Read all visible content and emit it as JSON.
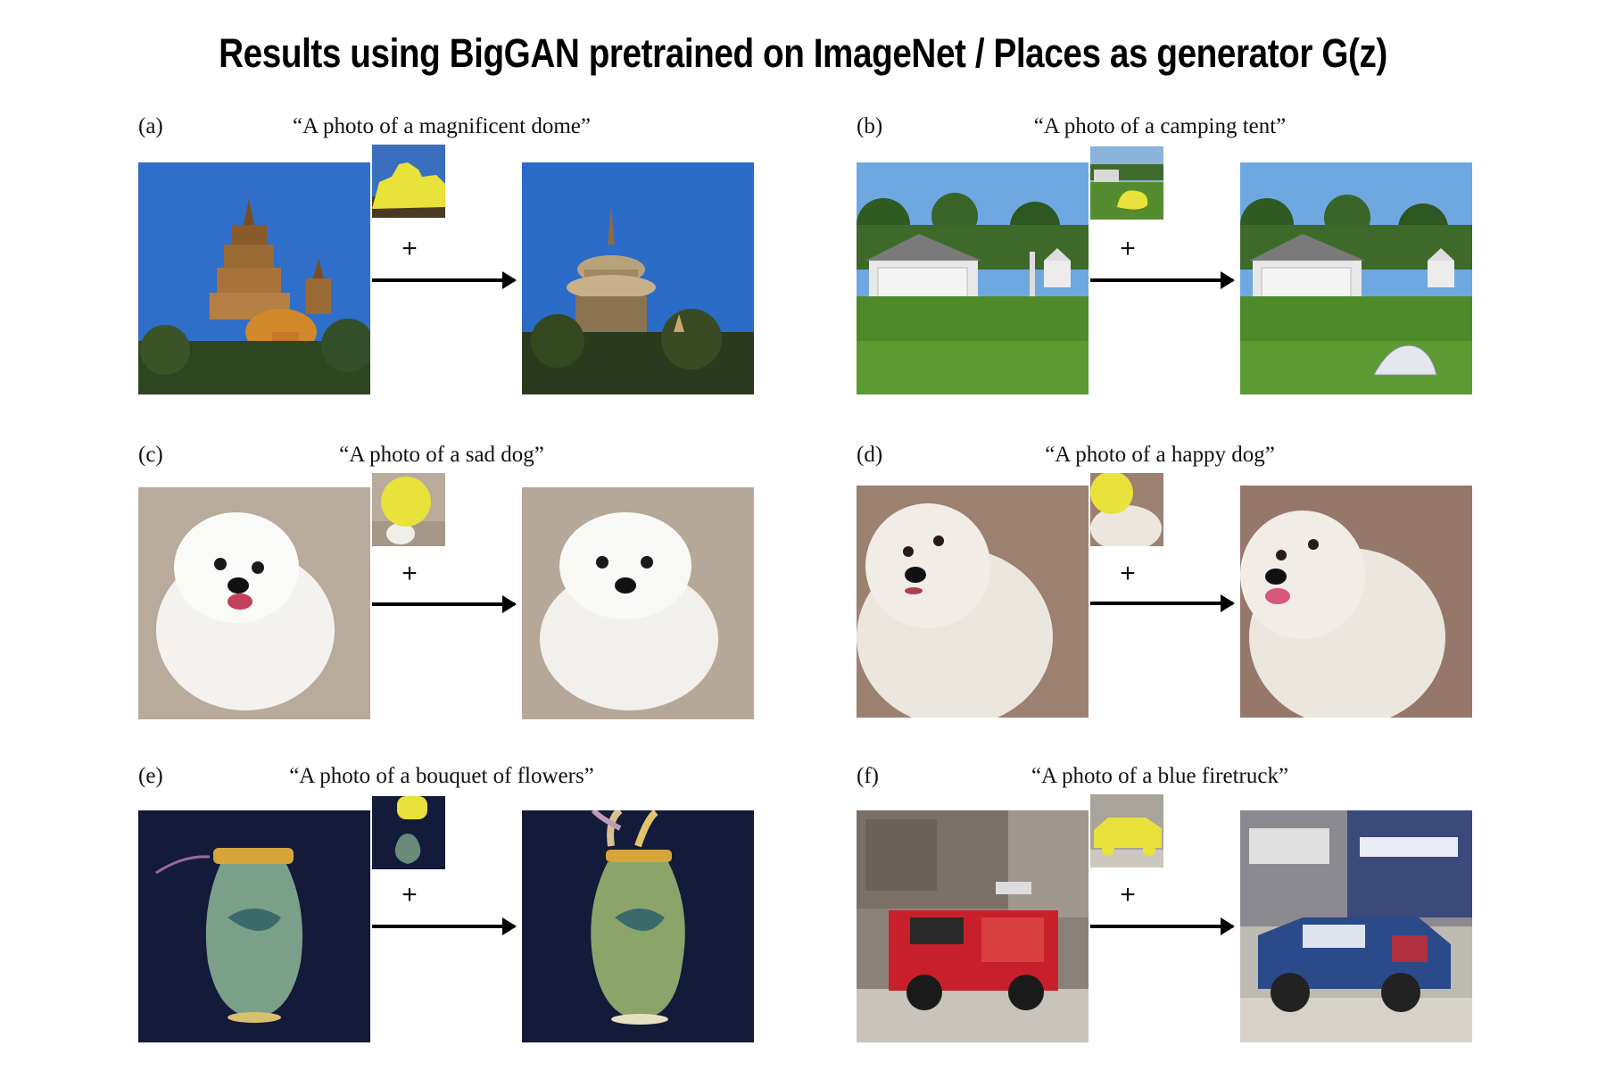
{
  "title": "Results using BigGAN pretrained on ImageNet / Places as generator G(z)",
  "panels": [
    {
      "label": "(a)",
      "caption": "“A photo of a magnificent dome”"
    },
    {
      "label": "(b)",
      "caption": "“A photo of a camping tent”"
    },
    {
      "label": "(c)",
      "caption": "“A photo of a sad dog”"
    },
    {
      "label": "(d)",
      "caption": "“A photo of a happy dog”"
    },
    {
      "label": "(e)",
      "caption": "“A photo of a bouquet of flowers”"
    },
    {
      "label": "(f)",
      "caption": "“A photo of a blue firetruck”"
    }
  ],
  "plus_sign": "+",
  "colors": {
    "mask_yellow": "#e8e23a",
    "sky_blue": "#2f6fc9",
    "grass_green": "#4f8a2a",
    "dark_navy": "#141a3a"
  }
}
